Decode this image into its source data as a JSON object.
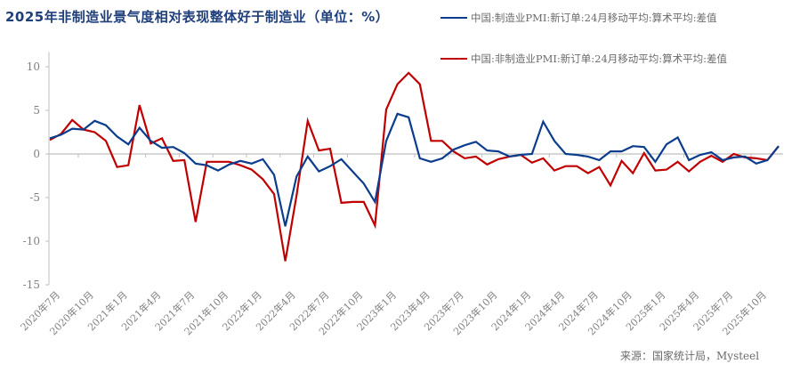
{
  "title": "2025年非制造业景气度相对表现整体好于制造业（单位：%）",
  "source": "来源：国家统计局，Mysteel",
  "colors": {
    "series1": "#0b3d8c",
    "series2": "#c00000",
    "axis": "#bfbfbf",
    "tick_text": "#7f7f7f"
  },
  "legend": [
    {
      "label": "中国:制造业PMI:新订单:24月移动平均:算术平均:差值",
      "color": "#0b3d8c"
    },
    {
      "label": "中国:非制造业PMI:新订单:24月移动平均:算术平均:差值",
      "color": "#c00000"
    }
  ],
  "chart_data": {
    "type": "line",
    "title": "2025年非制造业景气度相对表现整体好于制造业（单位：%）",
    "xlabel": "",
    "ylabel": "",
    "ylim": [
      -15,
      12
    ],
    "yticks": [
      -15,
      -10,
      -5,
      0,
      5,
      10
    ],
    "grid": false,
    "legend_position": "top-right",
    "xtick_labels": [
      "2020年7月",
      "2020年10月",
      "2021年1月",
      "2021年4月",
      "2021年7月",
      "2021年10月",
      "2022年1月",
      "2022年4月",
      "2022年7月",
      "2022年10月",
      "2023年1月",
      "2023年4月",
      "2023年7月",
      "2023年10月",
      "2024年1月",
      "2024年4月",
      "2024年7月",
      "2024年10月",
      "2025年1月",
      "2025年4月",
      "2025年7月",
      "2025年10月"
    ],
    "x": [
      "2020-07",
      "2020-08",
      "2020-09",
      "2020-10",
      "2020-11",
      "2020-12",
      "2021-01",
      "2021-02",
      "2021-03",
      "2021-04",
      "2021-05",
      "2021-06",
      "2021-07",
      "2021-08",
      "2021-09",
      "2021-10",
      "2021-11",
      "2021-12",
      "2022-01",
      "2022-02",
      "2022-03",
      "2022-04",
      "2022-05",
      "2022-06",
      "2022-07",
      "2022-08",
      "2022-09",
      "2022-10",
      "2022-11",
      "2022-12",
      "2023-01",
      "2023-02",
      "2023-03",
      "2023-04",
      "2023-05",
      "2023-06",
      "2023-07",
      "2023-08",
      "2023-09",
      "2023-10",
      "2023-11",
      "2023-12",
      "2024-01",
      "2024-02",
      "2024-03",
      "2024-04",
      "2024-05",
      "2024-06",
      "2024-07",
      "2024-08",
      "2024-09",
      "2024-10",
      "2024-11",
      "2024-12",
      "2025-01",
      "2025-02",
      "2025-03",
      "2025-04",
      "2025-05",
      "2025-06",
      "2025-07",
      "2025-08",
      "2025-09",
      "2025-10",
      "2025-11",
      "2025-12"
    ],
    "series": [
      {
        "name": "中国:制造业PMI:新订单:24月移动平均:算术平均:差值",
        "color": "#0b3d8c",
        "values": [
          1.8,
          2.2,
          2.9,
          2.8,
          3.8,
          3.3,
          2.0,
          1.1,
          3.0,
          1.5,
          0.7,
          0.8,
          0.1,
          -1.1,
          -1.3,
          -1.9,
          -1.2,
          -0.8,
          -1.1,
          -0.6,
          -2.4,
          -8.3,
          -2.6,
          -0.3,
          -2.0,
          -1.4,
          -0.6,
          -2.0,
          -3.4,
          -5.5,
          1.5,
          4.6,
          4.2,
          -0.5,
          -0.9,
          -0.5,
          0.5,
          1.0,
          1.4,
          0.4,
          0.3,
          -0.3,
          -0.1,
          0.0,
          3.7,
          1.5,
          0.0,
          -0.1,
          -0.3,
          -0.7,
          0.3,
          0.3,
          0.9,
          0.8,
          -0.9,
          1.1,
          1.9,
          -0.7,
          -0.1,
          0.2,
          -0.7,
          -0.4,
          -0.3,
          -1.1,
          -0.7,
          0.9
        ]
      },
      {
        "name": "中国:非制造业PMI:新订单:24月移动平均:算术平均:差值",
        "color": "#c00000",
        "values": [
          1.6,
          2.3,
          3.9,
          2.8,
          2.5,
          1.5,
          -1.5,
          -1.3,
          5.6,
          1.2,
          1.8,
          -0.8,
          -0.7,
          -7.8,
          -0.9,
          -0.9,
          -0.9,
          -1.3,
          -1.8,
          -2.9,
          -4.6,
          -12.3,
          -4.8,
          3.8,
          0.4,
          0.6,
          -5.6,
          -5.5,
          -5.5,
          -8.2,
          5.1,
          8.0,
          9.3,
          8.0,
          1.5,
          1.5,
          0.3,
          -0.5,
          -0.3,
          -1.2,
          -0.6,
          -0.3,
          -0.1,
          -1.0,
          -0.5,
          -1.9,
          -1.4,
          -1.4,
          -2.2,
          -1.5,
          -3.6,
          -0.8,
          -2.2,
          0.1,
          -1.9,
          -1.8,
          -0.9,
          -2.0,
          -0.9,
          -0.2,
          -0.9,
          0.0,
          -0.4,
          -0.5,
          -0.7,
          0.9
        ]
      }
    ]
  }
}
